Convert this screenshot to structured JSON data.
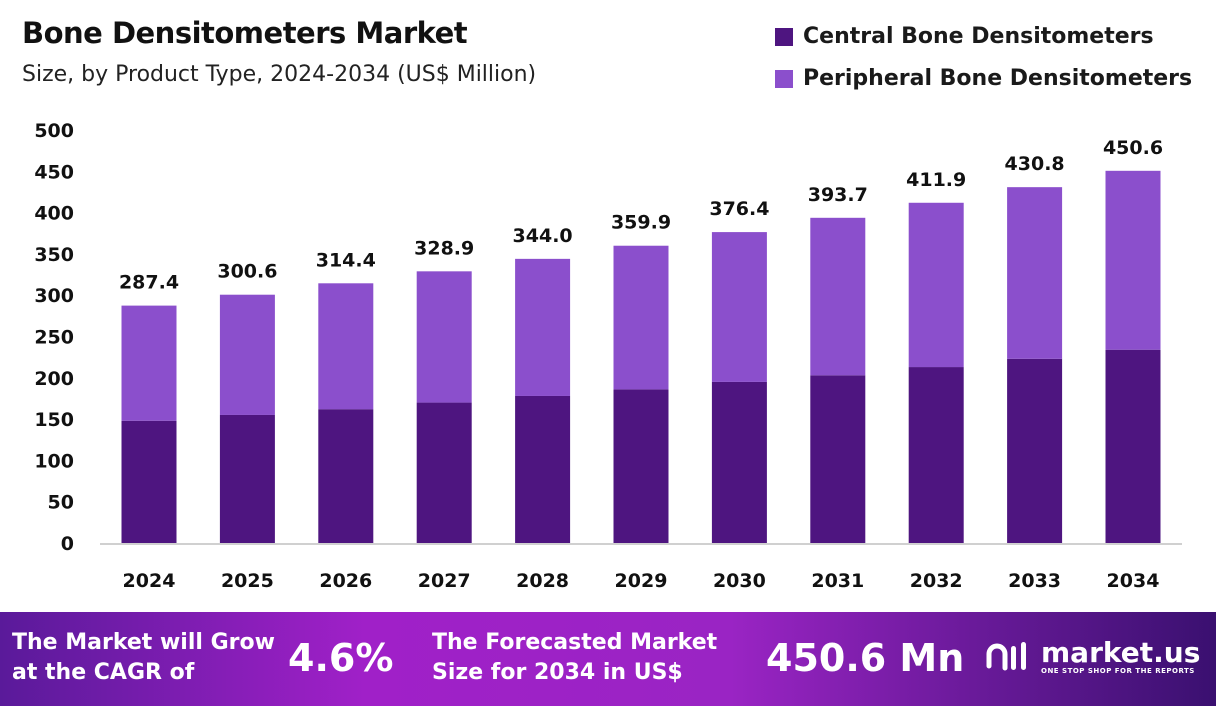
{
  "header": {
    "title": "Bone Densitometers  Market",
    "subtitle": "Size, by Product Type, 2024-2034 (US$ Million)"
  },
  "chart_data": {
    "type": "bar",
    "stacked": true,
    "categories": [
      "2024",
      "2025",
      "2026",
      "2027",
      "2028",
      "2029",
      "2030",
      "2031",
      "2032",
      "2033",
      "2034"
    ],
    "series": [
      {
        "name": "Central Bone Densitometers",
        "color": "#4e1580",
        "values": [
          148,
          155,
          162,
          170,
          178,
          186,
          195,
          203,
          213,
          223,
          234
        ]
      },
      {
        "name": "Peripheral Bone Densitometers",
        "color": "#8b4fcc",
        "values": [
          139.4,
          145.6,
          152.4,
          158.9,
          166.0,
          173.9,
          181.4,
          190.7,
          198.9,
          207.8,
          216.6
        ]
      }
    ],
    "totals": [
      "287.4",
      "300.6",
      "314.4",
      "328.9",
      "344.0",
      "359.9",
      "376.4",
      "393.7",
      "411.9",
      "430.8",
      "450.6"
    ],
    "yticks": [
      "0",
      "50",
      "100",
      "150",
      "200",
      "250",
      "300",
      "350",
      "400",
      "450",
      "500"
    ],
    "ylim": [
      0,
      500
    ],
    "grid": false,
    "legend": "top-right"
  },
  "footer": {
    "cagr_text_1": "The Market will Grow",
    "cagr_text_2": "at the CAGR of",
    "cagr_value": "4.6%",
    "forecast_text_1": "The Forecasted Market",
    "forecast_text_2": "Size for 2034 in US$",
    "forecast_value": "450.6 Mn",
    "logo_name": "market.us",
    "logo_tagline": "ONE STOP SHOP FOR THE REPORTS"
  }
}
